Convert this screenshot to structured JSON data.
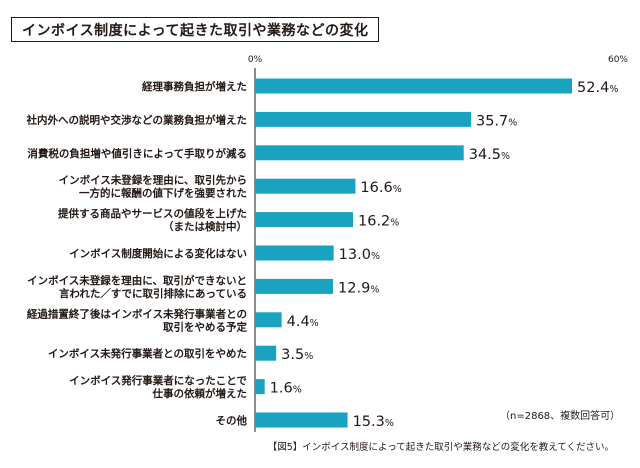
{
  "title": "インボイス制度によって起きた取引や業務などの変化",
  "note": "（n=2868、複数回答可）",
  "caption": "【図5】インボイス制度によって起きた取引や業務などの変化を教えてください。",
  "colors": {
    "bar": "#1aa3c0",
    "text": "#231815"
  },
  "chart_data": {
    "type": "bar",
    "orientation": "horizontal",
    "categories": [
      [
        "経理事務負担が増えた"
      ],
      [
        "社内外への説明や交渉などの業務負担が増えた"
      ],
      [
        "消費税の負担増や値引きによって手取りが減る"
      ],
      [
        "インボイス未登録を理由に、取引先から",
        "一方的に報酬の値下げを強要された"
      ],
      [
        "提供する商品やサービスの値段を上げた",
        "（または検討中）"
      ],
      [
        "インボイス制度開始による変化はない"
      ],
      [
        "インボイス未登録を理由に、取引ができないと",
        "言われた／すでに取引排除にあっている"
      ],
      [
        "経過措置終了後はインボイス未発行事業者との",
        "取引をやめる予定"
      ],
      [
        "インボイス未発行事業者との取引をやめた"
      ],
      [
        "インボイス発行事業者になったことで",
        "仕事の依頼が増えた"
      ],
      [
        "その他"
      ]
    ],
    "values": [
      52.4,
      35.7,
      34.5,
      16.6,
      16.2,
      13.0,
      12.9,
      4.4,
      3.5,
      1.6,
      15.3
    ],
    "value_labels": [
      "52.4",
      "35.7",
      "34.5",
      "16.6",
      "16.2",
      "13.0",
      "12.9",
      "4.4",
      "3.5",
      "1.6",
      "15.3"
    ],
    "unit": "%",
    "axis_ticks": [
      "0%",
      "60%"
    ],
    "xlim": [
      0,
      60
    ],
    "grid": false
  }
}
